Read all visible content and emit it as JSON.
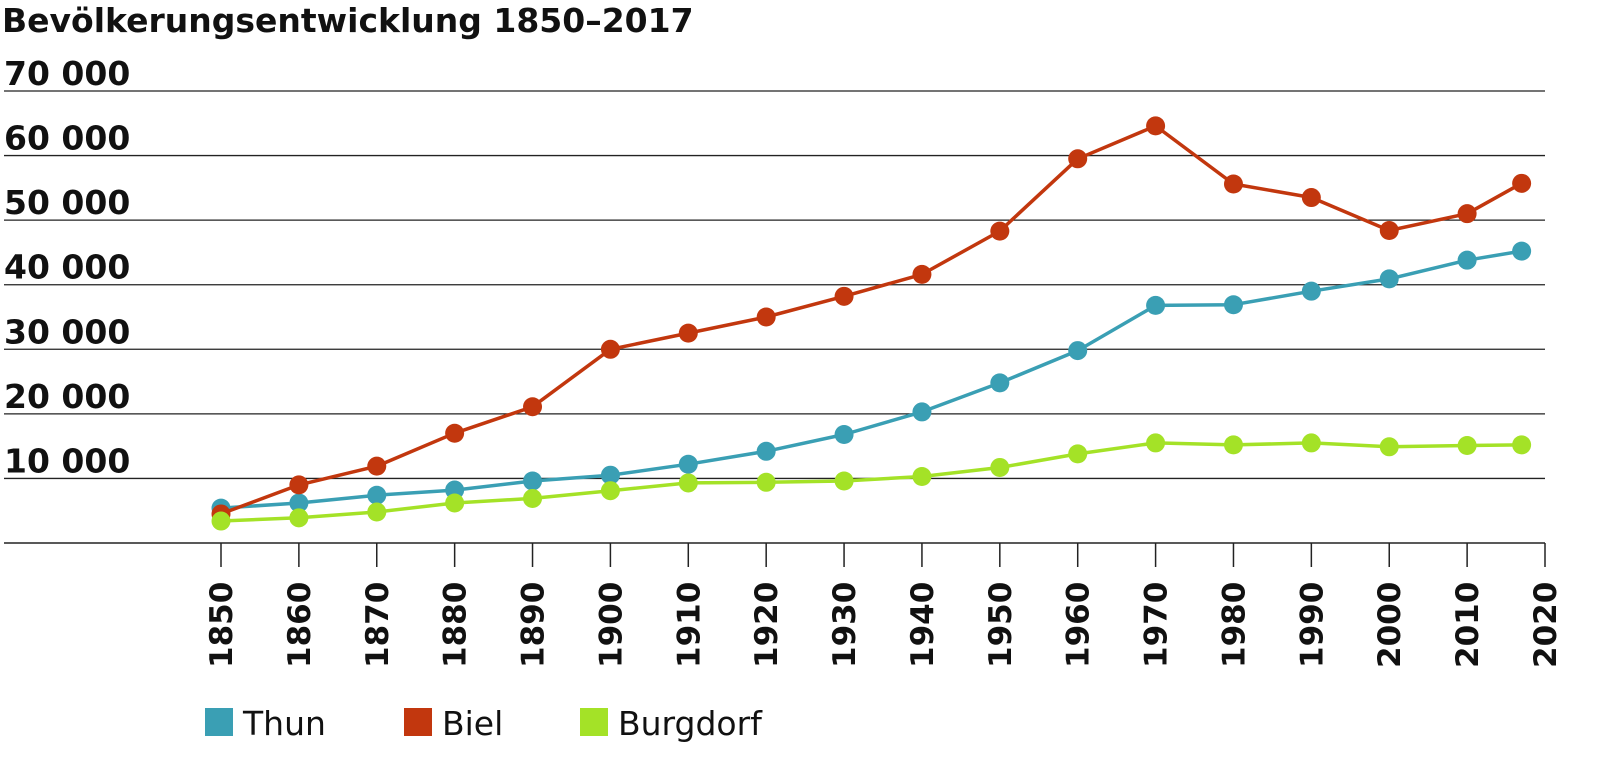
{
  "chart_data": {
    "type": "line",
    "title": "Bevölkerungsentwicklung 1850–2017",
    "xlabel": "",
    "ylabel": "",
    "ylim": [
      0,
      70000
    ],
    "y_ticks": [
      10000,
      20000,
      30000,
      40000,
      50000,
      60000,
      70000
    ],
    "y_tick_labels": [
      "10 000",
      "20 000",
      "30 000",
      "40 000",
      "50 000",
      "60 000",
      "70 000"
    ],
    "xlim": [
      1850,
      2020
    ],
    "x_ticks": [
      "1850",
      "1860",
      "1870",
      "1880",
      "1890",
      "1900",
      "1910",
      "1920",
      "1930",
      "1940",
      "1950",
      "1960",
      "1970",
      "1980",
      "1990",
      "2000",
      "2010",
      "2020"
    ],
    "x": [
      1850,
      1860,
      1870,
      1880,
      1890,
      1900,
      1910,
      1920,
      1930,
      1940,
      1950,
      1960,
      1970,
      1980,
      1990,
      2000,
      2010,
      2017
    ],
    "grid": true,
    "legend_position": "bottom",
    "series": [
      {
        "name": "Thun",
        "color": "#3a9fb4",
        "values": [
          5400,
          6200,
          7400,
          8200,
          9600,
          10500,
          12200,
          14200,
          16800,
          20300,
          24800,
          29800,
          36800,
          36900,
          39000,
          40900,
          43800,
          45200
        ]
      },
      {
        "name": "Biel",
        "color": "#c2370e",
        "values": [
          4500,
          9000,
          11900,
          17000,
          21100,
          30000,
          32500,
          35000,
          38200,
          41600,
          48300,
          59500,
          64600,
          55600,
          53500,
          48400,
          51000,
          55700
        ]
      },
      {
        "name": "Burgdorf",
        "color": "#a4e227",
        "values": [
          3400,
          3900,
          4800,
          6200,
          6900,
          8100,
          9300,
          9400,
          9600,
          10300,
          11700,
          13800,
          15500,
          15200,
          15500,
          14900,
          15100,
          15200
        ]
      }
    ]
  }
}
